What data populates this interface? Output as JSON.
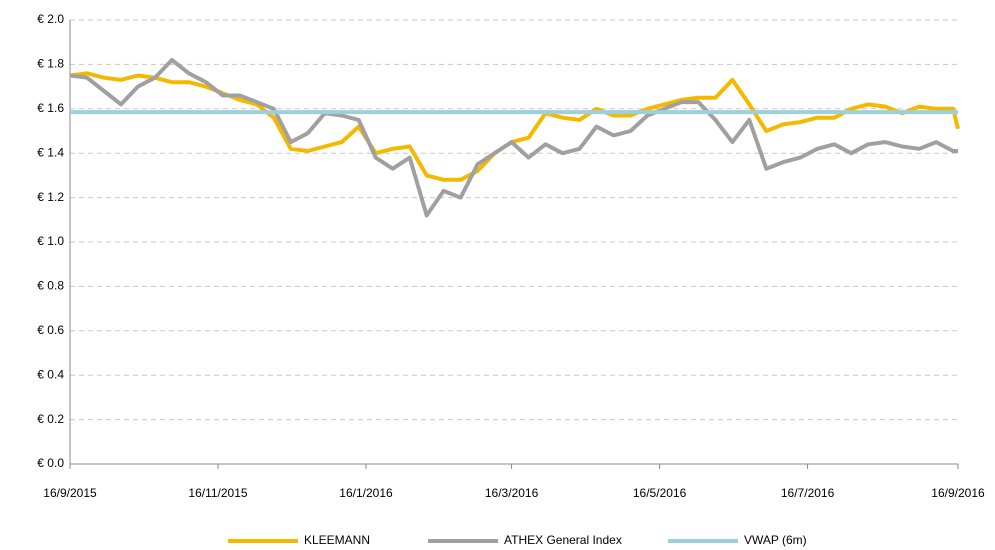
{
  "chart_data": {
    "type": "line",
    "x": [
      "2015-09-16",
      "2015-09-23",
      "2015-09-30",
      "2015-10-07",
      "2015-10-14",
      "2015-10-21",
      "2015-10-28",
      "2015-11-04",
      "2015-11-11",
      "2015-11-18",
      "2015-11-25",
      "2015-12-02",
      "2015-12-09",
      "2015-12-16",
      "2015-12-23",
      "2015-12-30",
      "2016-01-06",
      "2016-01-13",
      "2016-01-20",
      "2016-01-27",
      "2016-02-03",
      "2016-02-10",
      "2016-02-17",
      "2016-02-24",
      "2016-03-02",
      "2016-03-09",
      "2016-03-16",
      "2016-03-23",
      "2016-03-30",
      "2016-04-06",
      "2016-04-13",
      "2016-04-20",
      "2016-04-27",
      "2016-05-04",
      "2016-05-11",
      "2016-05-18",
      "2016-05-25",
      "2016-06-01",
      "2016-06-08",
      "2016-06-15",
      "2016-06-22",
      "2016-06-29",
      "2016-07-06",
      "2016-07-13",
      "2016-07-20",
      "2016-07-27",
      "2016-08-03",
      "2016-08-10",
      "2016-08-17",
      "2016-08-24",
      "2016-08-31",
      "2016-09-07",
      "2016-09-14",
      "2016-09-16"
    ],
    "series": [
      {
        "name": "KLEEMANN",
        "color": "#f5b800",
        "values": [
          1.75,
          1.76,
          1.74,
          1.73,
          1.75,
          1.74,
          1.72,
          1.72,
          1.7,
          1.67,
          1.64,
          1.62,
          1.56,
          1.42,
          1.41,
          1.43,
          1.45,
          1.52,
          1.4,
          1.42,
          1.43,
          1.3,
          1.28,
          1.28,
          1.32,
          1.4,
          1.45,
          1.47,
          1.58,
          1.56,
          1.55,
          1.6,
          1.57,
          1.57,
          1.6,
          1.62,
          1.64,
          1.65,
          1.65,
          1.73,
          1.62,
          1.5,
          1.53,
          1.54,
          1.56,
          1.56,
          1.6,
          1.62,
          1.61,
          1.58,
          1.61,
          1.6,
          1.6,
          1.51
        ]
      },
      {
        "name": "ATHEX General Index",
        "color": "#a0a0a0",
        "values": [
          1.75,
          1.74,
          1.68,
          1.62,
          1.7,
          1.74,
          1.82,
          1.76,
          1.72,
          1.66,
          1.66,
          1.63,
          1.6,
          1.45,
          1.49,
          1.58,
          1.57,
          1.55,
          1.38,
          1.33,
          1.38,
          1.12,
          1.23,
          1.2,
          1.35,
          1.4,
          1.45,
          1.38,
          1.44,
          1.4,
          1.42,
          1.52,
          1.48,
          1.5,
          1.57,
          1.6,
          1.63,
          1.63,
          1.55,
          1.45,
          1.55,
          1.33,
          1.36,
          1.38,
          1.42,
          1.44,
          1.4,
          1.44,
          1.45,
          1.43,
          1.42,
          1.45,
          1.41,
          1.41
        ]
      },
      {
        "name": "VWAP (6m)",
        "color": "#9ecfdc",
        "x": [
          "2015-09-16",
          "2016-09-16"
        ],
        "values": [
          1.585,
          1.585
        ]
      }
    ],
    "xlim": [
      "2015-09-16",
      "2016-09-16"
    ],
    "xticks": [
      {
        "value": "2015-09-16",
        "label": "16/9/2015"
      },
      {
        "value": "2015-11-16",
        "label": "16/11/2015"
      },
      {
        "value": "2016-01-16",
        "label": "16/1/2016"
      },
      {
        "value": "2016-03-16",
        "label": "16/3/2016"
      },
      {
        "value": "2016-05-16",
        "label": "16/5/2016"
      },
      {
        "value": "2016-07-16",
        "label": "16/7/2016"
      },
      {
        "value": "2016-09-16",
        "label": "16/9/2016"
      }
    ],
    "ylim": [
      0,
      2
    ],
    "yticks": [
      {
        "value": 0,
        "label": "€ 0.0"
      },
      {
        "value": 0.2,
        "label": "€ 0.2"
      },
      {
        "value": 0.4,
        "label": "€ 0.4"
      },
      {
        "value": 0.6,
        "label": "€ 0.6"
      },
      {
        "value": 0.8,
        "label": "€ 0.8"
      },
      {
        "value": 1,
        "label": "€ 1.0"
      },
      {
        "value": 1.2,
        "label": "€ 1.2"
      },
      {
        "value": 1.4,
        "label": "€ 1.4"
      },
      {
        "value": 1.6,
        "label": "€ 1.6"
      },
      {
        "value": 1.8,
        "label": "€ 1.8"
      },
      {
        "value": 2,
        "label": "€ 2.0"
      }
    ],
    "grid": true,
    "legend": "bottom"
  }
}
